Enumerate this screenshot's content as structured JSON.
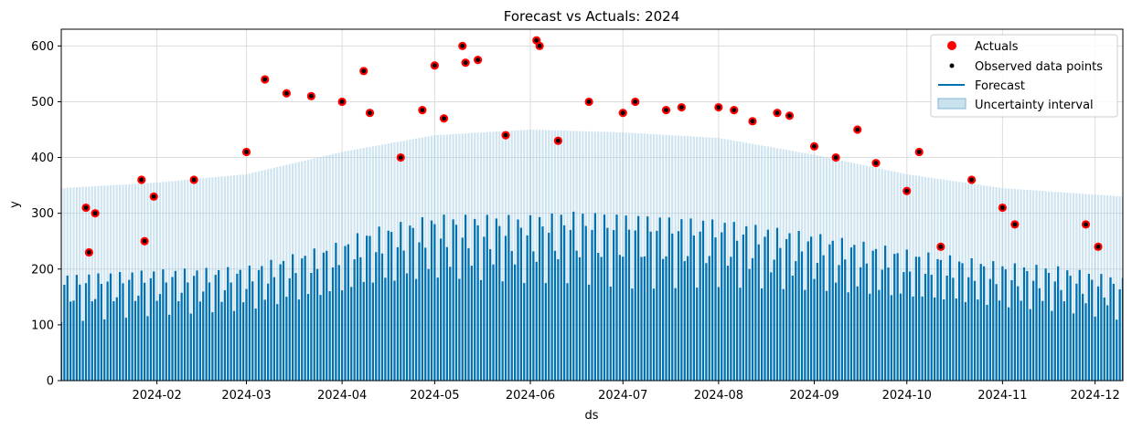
{
  "chart_data": {
    "type": "scatter",
    "title": "Forecast vs Actuals:  2024",
    "xlabel": "ds",
    "ylabel": "y",
    "xlim": [
      "2024-01-01",
      "2024-12-10"
    ],
    "ylim": [
      0,
      630
    ],
    "grid": true,
    "legend_position": "top-right",
    "x_ticks": [
      "2024-02",
      "2024-03",
      "2024-04",
      "2024-05",
      "2024-06",
      "2024-07",
      "2024-08",
      "2024-09",
      "2024-10",
      "2024-11",
      "2024-12"
    ],
    "y_ticks": [
      0,
      100,
      200,
      300,
      400,
      500,
      600
    ],
    "legend": [
      "Actuals",
      "Observed data points",
      "Forecast",
      "Uncertainty interval"
    ],
    "colors": {
      "actuals": "#ff0000",
      "observed": "#000000",
      "forecast": "#0072b2",
      "uncertainty": "#a6cee3"
    },
    "series": [
      {
        "name": "Forecast",
        "description_of_shape": "dense daily oscillation between ~0 and an upper envelope",
        "x": [
          "2024-01-01",
          "2024-02-01",
          "2024-03-01",
          "2024-04-01",
          "2024-04-08",
          "2024-05-01",
          "2024-05-25",
          "2024-05-27",
          "2024-06-15",
          "2024-07-01",
          "2024-08-01",
          "2024-09-01",
          "2024-10-01",
          "2024-11-01",
          "2024-11-20",
          "2024-12-10"
        ],
        "upper": [
          190,
          200,
          205,
          250,
          270,
          298,
          298,
          295,
          305,
          300,
          290,
          265,
          235,
          212,
          205,
          185
        ],
        "lower": [
          0,
          0,
          0,
          0,
          0,
          0,
          0,
          0,
          0,
          0,
          0,
          0,
          0,
          0,
          0,
          0
        ]
      },
      {
        "name": "Uncertainty interval",
        "x": [
          "2024-01-01",
          "2024-02-01",
          "2024-03-01",
          "2024-04-01",
          "2024-05-01",
          "2024-06-01",
          "2024-07-01",
          "2024-08-01",
          "2024-09-01",
          "2024-10-01",
          "2024-11-01",
          "2024-12-10"
        ],
        "upper": [
          345,
          355,
          370,
          410,
          440,
          450,
          445,
          435,
          405,
          370,
          345,
          330
        ]
      },
      {
        "name": "Actuals",
        "x": [
          "2024-01-09",
          "2024-01-10",
          "2024-01-12",
          "2024-01-27",
          "2024-01-28",
          "2024-01-31",
          "2024-02-13",
          "2024-03-01",
          "2024-03-07",
          "2024-03-14",
          "2024-03-22",
          "2024-04-01",
          "2024-04-08",
          "2024-04-10",
          "2024-04-20",
          "2024-04-27",
          "2024-05-01",
          "2024-05-04",
          "2024-05-10",
          "2024-05-11",
          "2024-05-15",
          "2024-05-24",
          "2024-06-03",
          "2024-06-04",
          "2024-06-10",
          "2024-06-20",
          "2024-07-01",
          "2024-07-05",
          "2024-07-15",
          "2024-07-20",
          "2024-08-01",
          "2024-08-06",
          "2024-08-12",
          "2024-08-20",
          "2024-08-24",
          "2024-09-01",
          "2024-09-08",
          "2024-09-15",
          "2024-09-21",
          "2024-10-01",
          "2024-10-05",
          "2024-10-12",
          "2024-10-22",
          "2024-11-01",
          "2024-11-05",
          "2024-11-28",
          "2024-12-02"
        ],
        "y": [
          310,
          230,
          300,
          360,
          250,
          330,
          360,
          410,
          540,
          515,
          510,
          500,
          555,
          480,
          400,
          485,
          565,
          470,
          600,
          570,
          575,
          440,
          610,
          600,
          430,
          500,
          480,
          500,
          485,
          490,
          490,
          485,
          465,
          480,
          475,
          420,
          400,
          450,
          390,
          340,
          410,
          240,
          360,
          310,
          280,
          280,
          240
        ]
      }
    ]
  }
}
